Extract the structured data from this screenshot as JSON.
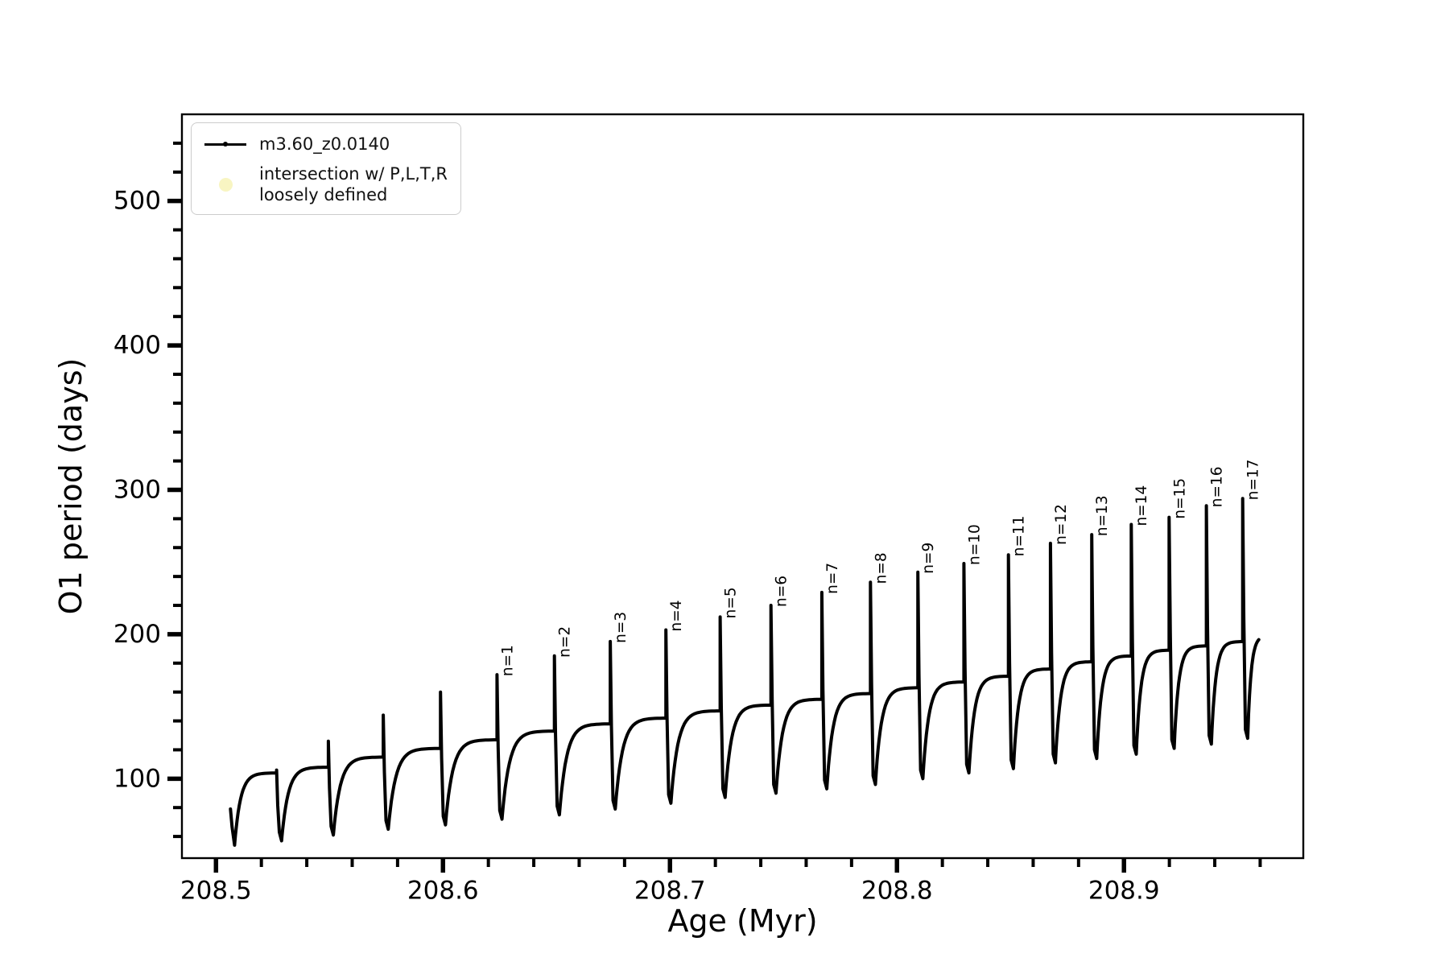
{
  "legend": {
    "series_label": "m3.60_z0.0140",
    "marker_label_line1": "intersection w/ P,L,T,R",
    "marker_label_line2": "loosely defined",
    "marker_color": "#f8f5c2",
    "series_color": "#000000"
  },
  "chart_data": {
    "type": "line",
    "title": "",
    "xlabel": "Age (Myr)",
    "ylabel": "O1 period (days)",
    "xlim": [
      208.485,
      208.979
    ],
    "ylim": [
      45,
      560
    ],
    "x_major_ticks": [
      208.5,
      208.6,
      208.7,
      208.8,
      208.9
    ],
    "x_minor_tick_step": 0.02,
    "y_major_ticks": [
      100,
      200,
      300,
      400,
      500
    ],
    "y_minor_tick_step": 20,
    "grid": false,
    "legend_position": "upper left",
    "series_name": "m3.60_z0.0140",
    "series_color": "#000000",
    "curve": {
      "description": "Sawtooth relaxation cycles: O1 period rises to a plateau, spikes sharply upward, drops to a deep minimum, then rises again. Spikes n=1..17 are labeled; four earlier spikes are unlabeled.",
      "start": {
        "age": 208.5064,
        "period": 79
      },
      "first_min": {
        "age": 208.5082,
        "period": 54
      },
      "end": {
        "age": 208.9594,
        "period": 196,
        "end_target": 199
      },
      "cycles": [
        {
          "label": null,
          "age": 208.5267,
          "plateau": 104,
          "peak": 106,
          "min_after": 57
        },
        {
          "label": null,
          "age": 208.5495,
          "plateau": 108,
          "peak": 126,
          "min_after": 61
        },
        {
          "label": null,
          "age": 208.5737,
          "plateau": 115,
          "peak": 144,
          "min_after": 65
        },
        {
          "label": null,
          "age": 208.5989,
          "plateau": 121,
          "peak": 160,
          "min_after": 68
        },
        {
          "label": "n=1",
          "age": 208.6238,
          "plateau": 127,
          "peak": 172,
          "min_after": 72
        },
        {
          "label": "n=2",
          "age": 208.6491,
          "plateau": 133,
          "peak": 185,
          "min_after": 75
        },
        {
          "label": "n=3",
          "age": 208.6737,
          "plateau": 138,
          "peak": 195,
          "min_after": 79
        },
        {
          "label": "n=4",
          "age": 208.6982,
          "plateau": 142,
          "peak": 203,
          "min_after": 83
        },
        {
          "label": "n=5",
          "age": 208.7221,
          "plateau": 147,
          "peak": 212,
          "min_after": 87
        },
        {
          "label": "n=6",
          "age": 208.7445,
          "plateau": 151,
          "peak": 220,
          "min_after": 90
        },
        {
          "label": "n=7",
          "age": 208.7669,
          "plateau": 155,
          "peak": 229,
          "min_after": 93
        },
        {
          "label": "n=8",
          "age": 208.7883,
          "plateau": 159,
          "peak": 236,
          "min_after": 96
        },
        {
          "label": "n=9",
          "age": 208.8092,
          "plateau": 163,
          "peak": 243,
          "min_after": 100
        },
        {
          "label": "n=10",
          "age": 208.8295,
          "plateau": 167,
          "peak": 249,
          "min_after": 104
        },
        {
          "label": "n=11",
          "age": 208.8491,
          "plateau": 171,
          "peak": 255,
          "min_after": 107
        },
        {
          "label": "n=12",
          "age": 208.8676,
          "plateau": 176,
          "peak": 263,
          "min_after": 111
        },
        {
          "label": "n=13",
          "age": 208.8858,
          "plateau": 181,
          "peak": 269,
          "min_after": 114
        },
        {
          "label": "n=14",
          "age": 208.9032,
          "plateau": 185,
          "peak": 276,
          "min_after": 117
        },
        {
          "label": "n=15",
          "age": 208.9199,
          "plateau": 189,
          "peak": 281,
          "min_after": 121
        },
        {
          "label": "n=16",
          "age": 208.9363,
          "plateau": 192,
          "peak": 289,
          "min_after": 124
        },
        {
          "label": "n=17",
          "age": 208.9523,
          "plateau": 195,
          "peak": 294,
          "min_after": 128
        }
      ],
      "annotations": [
        "n=1",
        "n=2",
        "n=3",
        "n=4",
        "n=5",
        "n=6",
        "n=7",
        "n=8",
        "n=9",
        "n=10",
        "n=11",
        "n=12",
        "n=13",
        "n=14",
        "n=15",
        "n=16",
        "n=17"
      ]
    }
  }
}
